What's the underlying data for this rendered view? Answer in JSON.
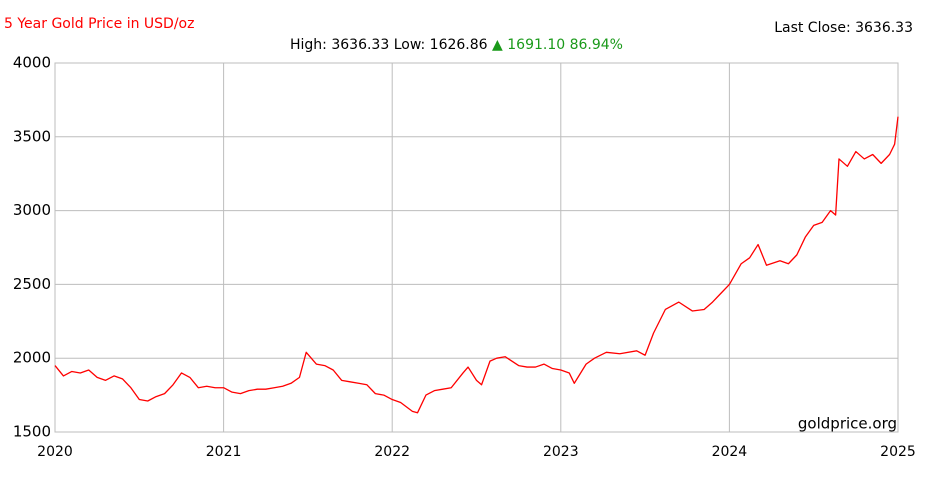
{
  "chart_data": {
    "type": "line",
    "title": "5 Year Gold Price in USD/oz",
    "annotations": {
      "high": "High: 3636.33",
      "low": "Low: 1626.86",
      "change": "▲ 1691.10 86.94%",
      "last_close": "Last Close: 3636.33",
      "watermark": "goldprice.org"
    },
    "x": [
      2020.0,
      2020.05,
      2020.1,
      2020.15,
      2020.2,
      2020.25,
      2020.3,
      2020.35,
      2020.4,
      2020.45,
      2020.5,
      2020.55,
      2020.6,
      2020.65,
      2020.7,
      2020.75,
      2020.8,
      2020.85,
      2020.9,
      2020.95,
      2021.0,
      2021.05,
      2021.1,
      2021.15,
      2021.2,
      2021.25,
      2021.3,
      2021.35,
      2021.4,
      2021.45,
      2021.49,
      2021.55,
      2021.6,
      2021.65,
      2021.7,
      2021.75,
      2021.8,
      2021.85,
      2021.9,
      2021.95,
      2022.0,
      2022.05,
      2022.12,
      2022.15,
      2022.2,
      2022.25,
      2022.3,
      2022.35,
      2022.42,
      2022.45,
      2022.5,
      2022.53,
      2022.58,
      2022.62,
      2022.67,
      2022.75,
      2022.8,
      2022.85,
      2022.9,
      2022.95,
      2023.0,
      2023.05,
      2023.08,
      2023.15,
      2023.2,
      2023.27,
      2023.35,
      2023.45,
      2023.5,
      2023.55,
      2023.62,
      2023.7,
      2023.78,
      2023.85,
      2023.9,
      2023.95,
      2024.0,
      2024.07,
      2024.12,
      2024.17,
      2024.22,
      2024.3,
      2024.35,
      2024.4,
      2024.45,
      2024.5,
      2024.55,
      2024.6,
      2024.63,
      2024.65,
      2024.7,
      2024.75,
      2024.8,
      2024.85,
      2024.9,
      2024.95,
      2024.98,
      2025.0
    ],
    "series": [
      {
        "name": "Gold",
        "color": "#ff0000",
        "values": [
          1950,
          1880,
          1910,
          1900,
          1920,
          1870,
          1850,
          1880,
          1860,
          1800,
          1720,
          1710,
          1740,
          1760,
          1820,
          1900,
          1870,
          1800,
          1810,
          1800,
          1800,
          1770,
          1760,
          1780,
          1790,
          1790,
          1800,
          1810,
          1830,
          1870,
          2040,
          1960,
          1950,
          1920,
          1850,
          1840,
          1830,
          1820,
          1760,
          1750,
          1720,
          1700,
          1640,
          1630,
          1750,
          1780,
          1790,
          1800,
          1900,
          1940,
          1850,
          1820,
          1980,
          2000,
          2010,
          1950,
          1940,
          1940,
          1960,
          1930,
          1920,
          1900,
          1830,
          1960,
          2000,
          2040,
          2030,
          2050,
          2020,
          2170,
          2330,
          2380,
          2320,
          2330,
          2380,
          2440,
          2500,
          2640,
          2680,
          2770,
          2630,
          2660,
          2640,
          2700,
          2820,
          2900,
          2920,
          3000,
          2970,
          3350,
          3300,
          3400,
          3350,
          3380,
          3320,
          3380,
          3450,
          3636.33
        ]
      }
    ],
    "xlim": [
      2020,
      2025
    ],
    "xticks": [
      2020,
      2021,
      2022,
      2023,
      2024,
      2025
    ],
    "ylim": [
      1500,
      4000
    ],
    "yticks": [
      1500,
      2000,
      2500,
      3000,
      3500,
      4000
    ],
    "grid": true
  }
}
